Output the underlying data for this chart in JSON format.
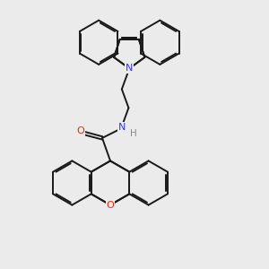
{
  "bg_color": "#ebebeb",
  "bond_color": "#1a1a1a",
  "N_color": "#3333ff",
  "O_color": "#ff2200",
  "H_color": "#888888",
  "lw": 1.4,
  "dbo": 0.055,
  "figsize": [
    3.0,
    3.0
  ],
  "dpi": 100,
  "xlim": [
    0,
    10
  ],
  "ylim": [
    0,
    10
  ]
}
